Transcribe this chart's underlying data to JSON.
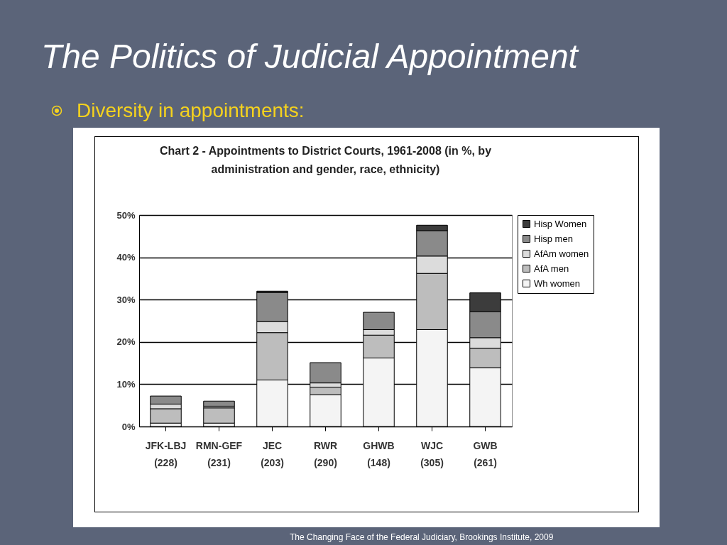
{
  "chart_data": {
    "type": "bar",
    "title": "Chart 2 - Appointments to District Courts, 1961-2008 (in %, by administration and gender, race, ethnicity)",
    "annotations": [
      "The Politics of Judicial Appointment",
      "Diversity in appointments:",
      "The Changing Face of the Federal Judiciary, Brookings Institute, 2009"
    ],
    "categories": [
      "JFK-LBJ (228)",
      "RMN-GEF (231)",
      "JEC (203)",
      "RWR (290)",
      "GHWB (148)",
      "WJC (305)",
      "GWB (261)"
    ],
    "stacked": true,
    "series": [
      {
        "name": "Wh women",
        "color": "#f4f4f4",
        "values": [
          0.8,
          0.8,
          11.0,
          7.5,
          16.2,
          22.9,
          13.9
        ]
      },
      {
        "name": "AfA men",
        "color": "#bdbdbd",
        "values": [
          3.4,
          3.6,
          11.2,
          1.8,
          5.4,
          13.3,
          4.6
        ]
      },
      {
        "name": "AfAm women",
        "color": "#dcdcdc",
        "values": [
          1.1,
          0.4,
          2.6,
          1.0,
          1.3,
          4.1,
          2.5
        ]
      },
      {
        "name": "Hisp men",
        "color": "#8a8a8a",
        "values": [
          1.9,
          1.2,
          6.9,
          4.8,
          4.1,
          6.0,
          6.1
        ]
      },
      {
        "name": "Hisp Women",
        "color": "#3c3c3c",
        "values": [
          0,
          0,
          0.3,
          0,
          0,
          1.3,
          4.5
        ]
      }
    ],
    "ylim": [
      0,
      50
    ],
    "yticks": [
      {
        "value": 0,
        "label": "0%"
      },
      {
        "value": 10,
        "label": "10%"
      },
      {
        "value": 20,
        "label": "20%"
      },
      {
        "value": 30,
        "label": "30%"
      },
      {
        "value": 40,
        "label": "40%"
      },
      {
        "value": 50,
        "label": "50%"
      }
    ],
    "grid": "y",
    "legend": "right"
  }
}
